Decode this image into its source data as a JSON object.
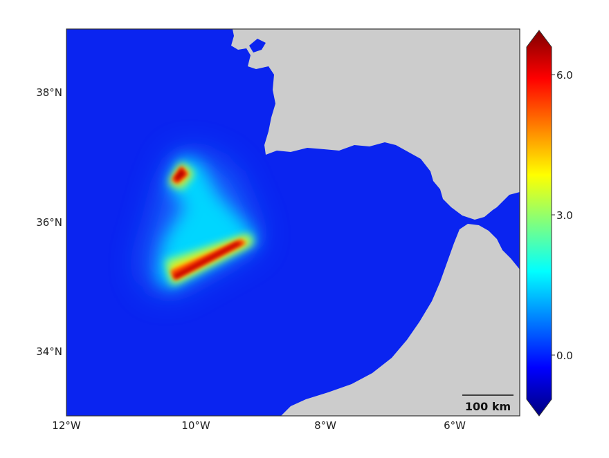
{
  "map": {
    "lon_ticks": [
      "12°W",
      "10°W",
      "8°W",
      "6°W"
    ],
    "lat_ticks": [
      "38°N",
      "36°N",
      "34°N"
    ],
    "scale_bar": {
      "label": "100 km"
    }
  },
  "colorbar": {
    "ticks": [
      "6.0",
      "3.0",
      "0.0"
    ],
    "colormap": "jet",
    "extend": "both"
  },
  "colors": {
    "ocean": "#0a24f0",
    "land": "#cccccc",
    "frame": "#333333"
  }
}
